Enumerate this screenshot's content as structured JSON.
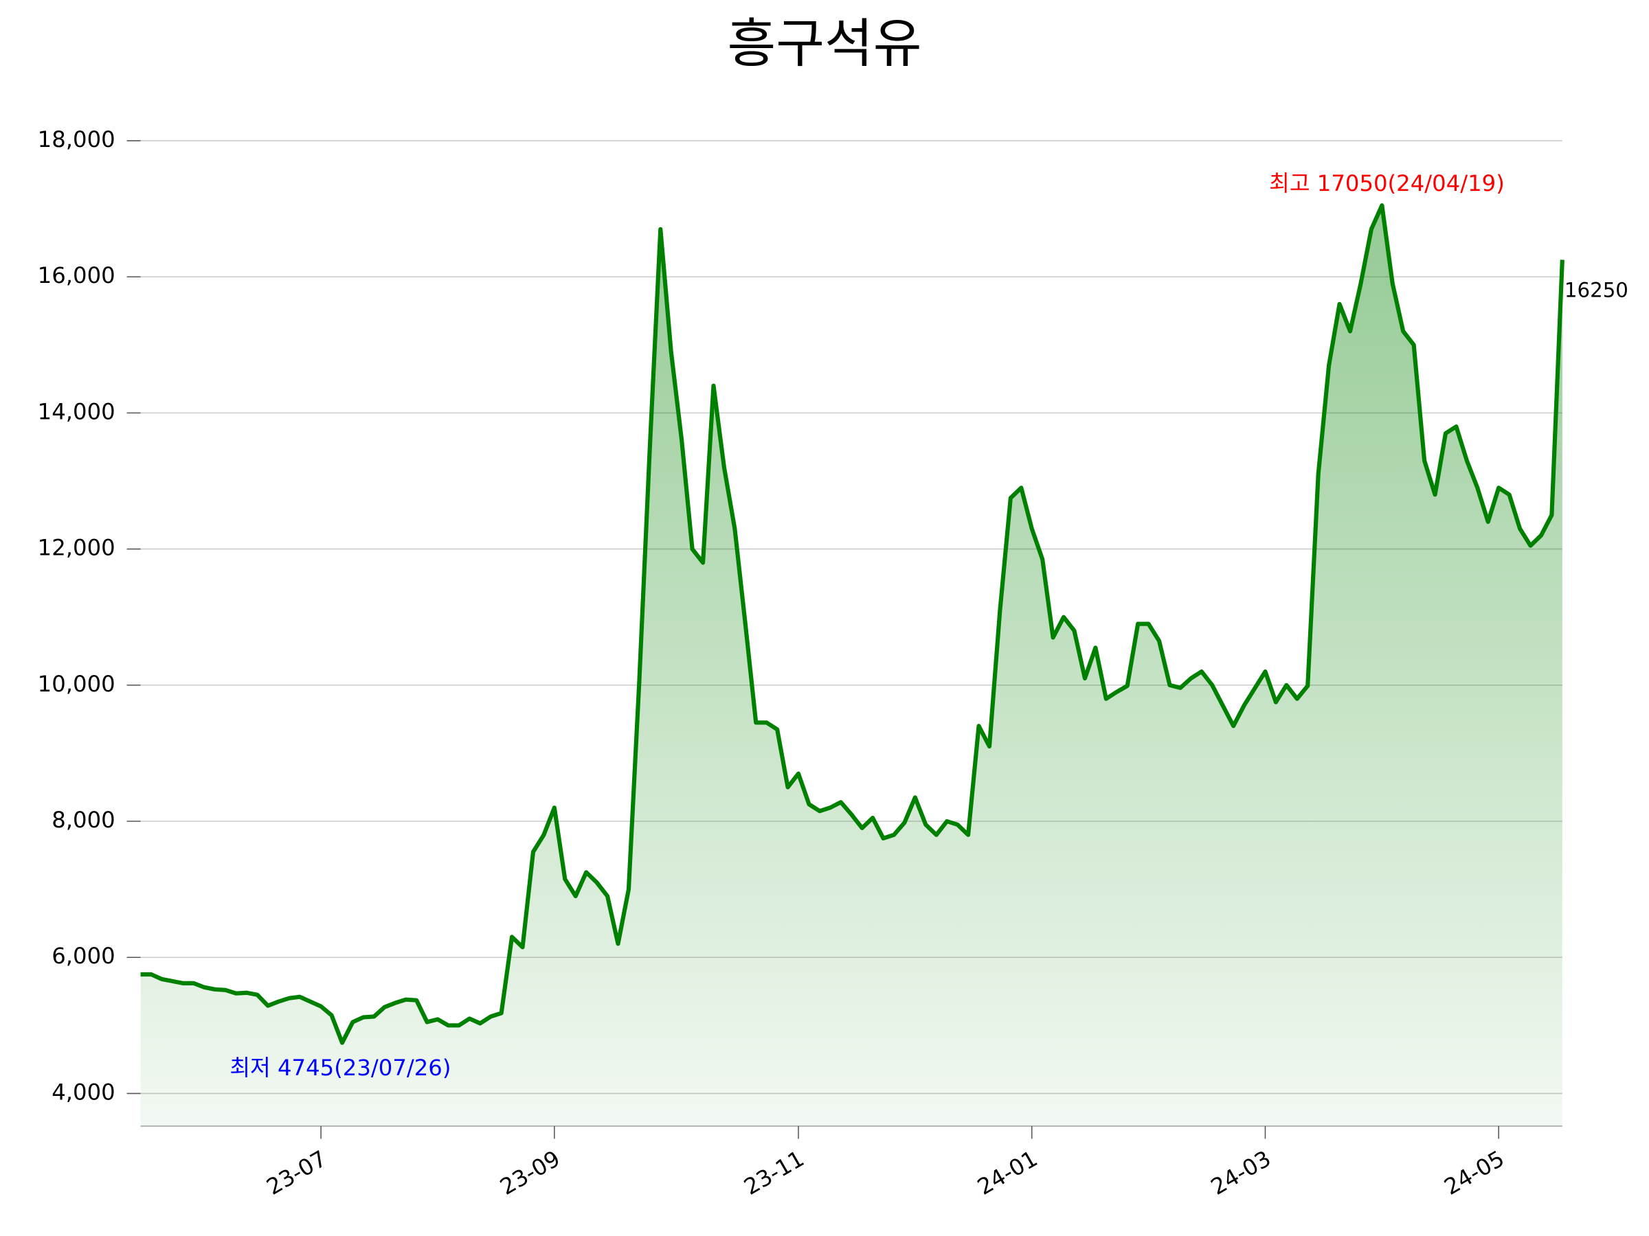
{
  "chart_data": {
    "type": "area-line",
    "title": "흥구석유",
    "color": "#008000",
    "grid": true,
    "categories": [
      null,
      null,
      null,
      null,
      null,
      null,
      null,
      null,
      null,
      null,
      null,
      null,
      null,
      null,
      null,
      null,
      null,
      "23-07",
      null,
      null,
      null,
      null,
      null,
      null,
      null,
      null,
      null,
      null,
      null,
      null,
      null,
      null,
      null,
      null,
      null,
      null,
      null,
      null,
      null,
      "23-09",
      null,
      null,
      null,
      null,
      null,
      null,
      null,
      null,
      null,
      null,
      null,
      null,
      null,
      null,
      null,
      null,
      null,
      null,
      null,
      null,
      null,
      null,
      "23-11",
      null,
      null,
      null,
      null,
      null,
      null,
      null,
      null,
      null,
      null,
      null,
      null,
      null,
      null,
      null,
      null,
      null,
      null,
      null,
      null,
      null,
      "24-01",
      null,
      null,
      null,
      null,
      null,
      null,
      null,
      null,
      null,
      null,
      null,
      null,
      null,
      null,
      null,
      null,
      null,
      null,
      null,
      null,
      null,
      "24-03",
      null,
      null,
      null,
      null,
      null,
      null,
      null,
      null,
      null,
      null,
      null,
      null,
      null,
      null,
      null,
      null,
      null,
      null,
      null,
      null,
      null,
      "24-05",
      null,
      null,
      null,
      null,
      null,
      null
    ],
    "values": [
      5750,
      5750,
      5680,
      5650,
      5620,
      5620,
      5560,
      5530,
      5520,
      5470,
      5480,
      5450,
      5290,
      5350,
      5400,
      5420,
      5350,
      5280,
      5150,
      4745,
      5050,
      5120,
      5130,
      5270,
      5330,
      5380,
      5370,
      5050,
      5090,
      5000,
      5000,
      5100,
      5030,
      5130,
      5180,
      6300,
      6150,
      7550,
      7800,
      8200,
      7150,
      6900,
      7250,
      7100,
      6900,
      6200,
      7000,
      10050,
      13500,
      16700,
      14900,
      13600,
      12000,
      11800,
      14400,
      13200,
      12300,
      10900,
      9450,
      9450,
      9350,
      8500,
      8700,
      8250,
      8150,
      8200,
      8280,
      8100,
      7900,
      8050,
      7750,
      7800,
      7980,
      8350,
      7950,
      7800,
      8000,
      7950,
      7800,
      9400,
      9100,
      11100,
      12750,
      12900,
      12300,
      11850,
      10700,
      11000,
      10800,
      10100,
      10550,
      9800,
      9900,
      9990,
      10900,
      10900,
      10650,
      10000,
      9960,
      10100,
      10200,
      10000,
      9700,
      9400,
      9700,
      9950,
      10200,
      9750,
      10000,
      9800,
      9990,
      13100,
      14700,
      15600,
      15200,
      15900,
      16700,
      17050,
      15900,
      15200,
      15000,
      13300,
      12800,
      13700,
      13800,
      13300,
      12900,
      12400,
      12900,
      12800,
      12300,
      12050,
      12200,
      12500,
      16250
    ],
    "ylim": [
      3520,
      18500
    ],
    "yticks": [
      {
        "value": 4000,
        "label": "4,000"
      },
      {
        "value": 6000,
        "label": "6,000"
      },
      {
        "value": 8000,
        "label": "8,000"
      },
      {
        "value": 10000,
        "label": "10,000"
      },
      {
        "value": 12000,
        "label": "12,000"
      },
      {
        "value": 14000,
        "label": "14,000"
      },
      {
        "value": 16000,
        "label": "16,000"
      },
      {
        "value": 18000,
        "label": "18,000"
      }
    ],
    "annotations": [
      {
        "text": "최고 17050(24/04/19)",
        "color": "#ff0000"
      },
      {
        "text": "최저 4745(23/07/26)",
        "color": "#0000ff"
      }
    ]
  }
}
